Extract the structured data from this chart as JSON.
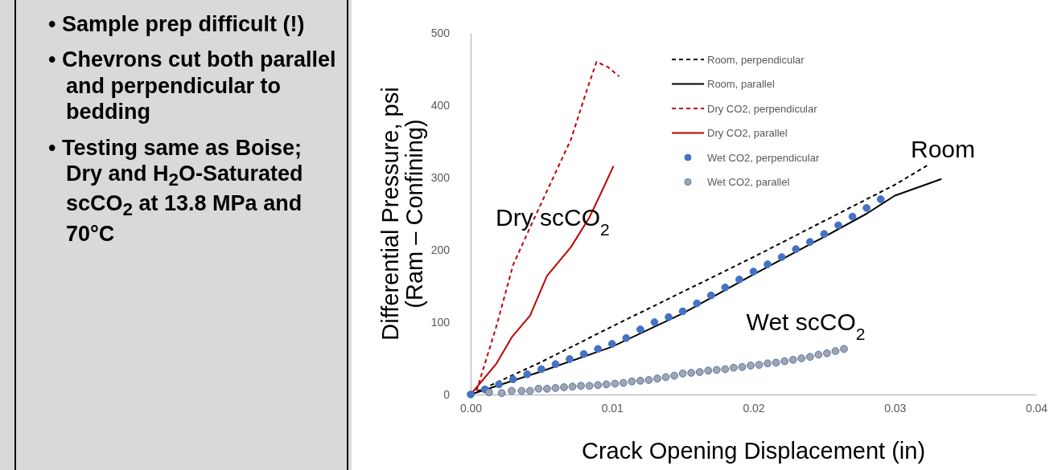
{
  "chart_data": {
    "type": "line",
    "xlabel": "Crack Opening Displacement (in)",
    "ylabel": "Differential Pressure, psi\n(Ram – Confining)",
    "xlim": [
      0,
      0.04
    ],
    "ylim": [
      0,
      500
    ],
    "xticks": [
      {
        "value": 0,
        "label": "0.00"
      },
      {
        "value": 0.01,
        "label": "0.01"
      },
      {
        "value": 0.02,
        "label": "0.02"
      },
      {
        "value": 0.03,
        "label": "0.03"
      },
      {
        "value": 0.04,
        "label": "0.04"
      }
    ],
    "yticks": [
      0,
      100,
      200,
      300,
      400,
      500
    ],
    "grid": false,
    "legend": "top right",
    "series": [
      {
        "name": "Room, perpendicular",
        "color": "#000000",
        "line_style": "dashed",
        "marker": "none",
        "x": [
          0,
          0.005,
          0.01,
          0.015,
          0.02,
          0.025,
          0.03,
          0.0324
        ],
        "values": [
          0,
          45,
          94,
          142,
          190,
          240,
          290,
          318
        ]
      },
      {
        "name": "Room, parallel",
        "color": "#000000",
        "line_style": "solid",
        "marker": "none",
        "x": [
          0,
          0.005,
          0.01,
          0.015,
          0.02,
          0.025,
          0.028,
          0.03,
          0.0333
        ],
        "values": [
          0,
          32,
          66,
          112,
          166,
          218,
          250,
          275,
          298
        ]
      },
      {
        "name": "Dry CO2, perpendicular",
        "color": "#c00000",
        "line_style": "dashed",
        "marker": "none",
        "x": [
          0,
          0.0004,
          0.0018,
          0.003,
          0.0042,
          0.0056,
          0.0071,
          0.0082,
          0.0089,
          0.0097,
          0.0105
        ],
        "values": [
          0,
          4,
          93,
          179,
          231,
          290,
          353,
          420,
          460,
          453,
          440
        ]
      },
      {
        "name": "Dry CO2, parallel",
        "color": "#c00000",
        "line_style": "solid",
        "marker": "none",
        "x": [
          0,
          0.0018,
          0.0029,
          0.0042,
          0.0054,
          0.0071,
          0.0084,
          0.0093,
          0.0101
        ],
        "values": [
          0,
          42,
          79,
          109,
          164,
          204,
          245,
          282,
          316
        ]
      },
      {
        "name": "Wet CO2, perpendicular",
        "type": "scatter",
        "color": "#4472c4",
        "marker": "circle",
        "x": [
          0,
          0.001,
          0.002,
          0.003,
          0.004,
          0.005,
          0.006,
          0.007,
          0.008,
          0.009,
          0.01,
          0.011,
          0.012,
          0.013,
          0.014,
          0.015,
          0.016,
          0.017,
          0.018,
          0.019,
          0.02,
          0.021,
          0.022,
          0.023,
          0.024,
          0.025,
          0.026,
          0.027,
          0.028,
          0.029
        ],
        "values": [
          0,
          7,
          14,
          21,
          28,
          35,
          42,
          49,
          56,
          63,
          70,
          78,
          90,
          100,
          107,
          115,
          126,
          137,
          148,
          159,
          170,
          180,
          190,
          201,
          211,
          222,
          234,
          246,
          258,
          270
        ]
      },
      {
        "name": "Wet CO2, parallel",
        "type": "scatter",
        "color": "#a5a5a5",
        "marker": "circle",
        "x": [
          0.0013,
          0.0022,
          0.0029,
          0.0036,
          0.0042,
          0.0048,
          0.0054,
          0.006,
          0.0066,
          0.0072,
          0.0078,
          0.0084,
          0.009,
          0.0096,
          0.0102,
          0.0108,
          0.0114,
          0.012,
          0.0126,
          0.0132,
          0.0138,
          0.0144,
          0.015,
          0.0156,
          0.0162,
          0.0168,
          0.0174,
          0.018,
          0.0186,
          0.0192,
          0.0198,
          0.0204,
          0.021,
          0.0216,
          0.0222,
          0.0228,
          0.0234,
          0.024,
          0.0246,
          0.0252,
          0.0258,
          0.0264
        ],
        "values": [
          3,
          2,
          5,
          5,
          5,
          8,
          8,
          9,
          10,
          11,
          12,
          12,
          13,
          14,
          15,
          16,
          18,
          19,
          20,
          22,
          24,
          26,
          29,
          30,
          31,
          33,
          34,
          35,
          37,
          38,
          40,
          41,
          43,
          44,
          46,
          48,
          50,
          52,
          55,
          57,
          60,
          63
        ]
      }
    ],
    "annotations": [
      "Dry scCO$_{2}$",
      "Room",
      "Wet scCO$_{2}$",
      "• Sample prep difficult (!)",
      "• Chevrons cut both parallel and perpendicular to bedding",
      "• Testing same as Boise; Dry and H$_{2}$O-Saturated scCO$_{2}$ at 13.8 MPa and 70°C"
    ]
  }
}
